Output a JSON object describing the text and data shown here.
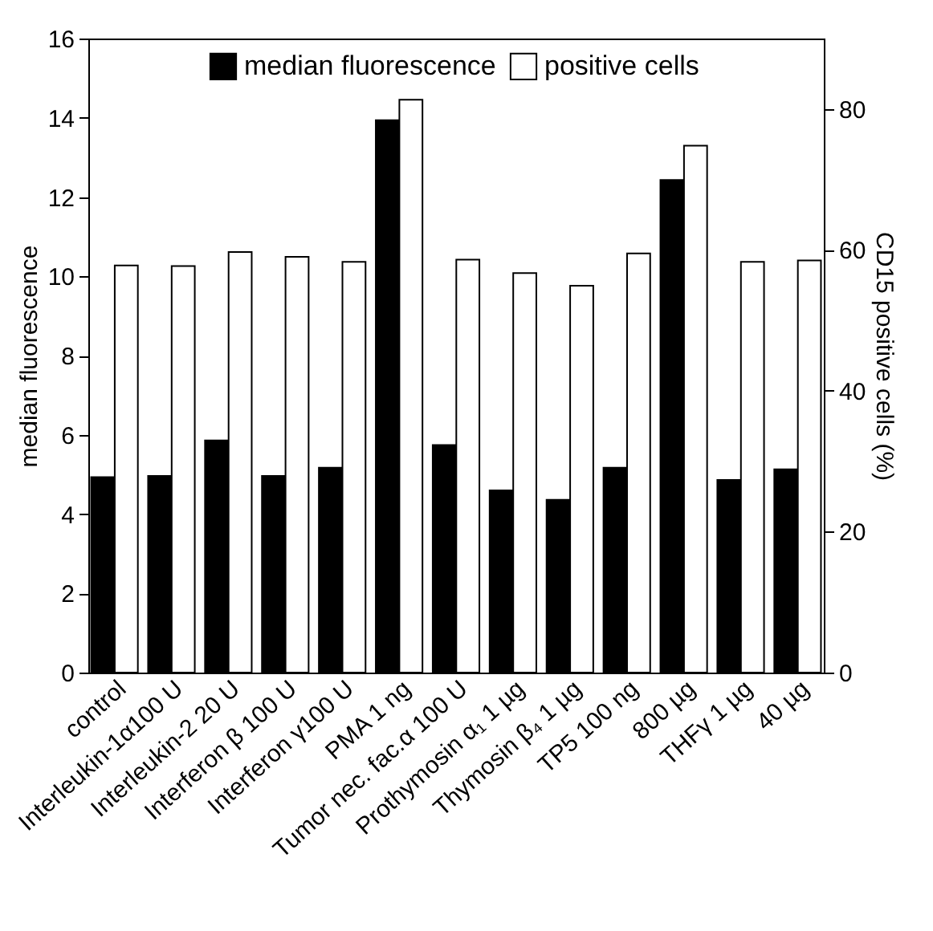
{
  "chart_data": {
    "type": "bar",
    "ylabel": "median fluorescence",
    "y2label": "CD15 positive cells (%)",
    "categories": [
      "control",
      "Interleukin-1α100 U",
      "Interleukin-2 20 U",
      "Interferon β 100 U",
      "Interferon γ100 U",
      "PMA 1 ng",
      "Tumor nec. fac.α 100 U",
      "Prothymosin α₁ 1 µg",
      "Thymosin β₄ 1 µg",
      "TP5 100 ng",
      "800 µg",
      "THFγ 1 µg",
      "40 µg"
    ],
    "series": [
      {
        "name": "median fluorescence",
        "color": "#000000",
        "values": [
          4.93,
          4.96,
          5.86,
          4.96,
          5.17,
          13.94,
          5.74,
          4.6,
          4.36,
          5.17,
          12.43,
          4.86,
          5.13
        ]
      },
      {
        "name": "positive cells",
        "color": "#ffffff",
        "axis": "y2",
        "values": [
          57.8,
          57.7,
          59.7,
          59.0,
          58.3,
          81.3,
          58.6,
          56.7,
          54.9,
          59.5,
          74.8,
          58.3,
          58.5
        ]
      }
    ],
    "ylim": [
      0,
      16
    ],
    "yticks": [
      0,
      2,
      4,
      6,
      8,
      10,
      12,
      14,
      16
    ],
    "y2lim": [
      0,
      90
    ],
    "y2ticks": [
      0,
      20,
      40,
      60,
      80
    ],
    "grid": false,
    "legend": "top"
  }
}
